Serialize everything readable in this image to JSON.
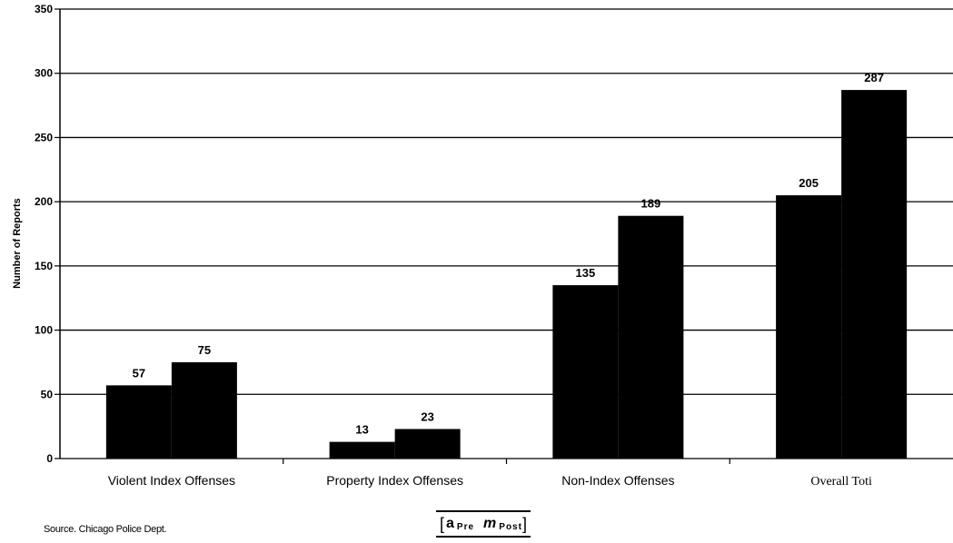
{
  "chart_data": {
    "type": "bar",
    "categories": [
      "Violent Index Offenses",
      "Property Index Offenses",
      "Non-Index Offenses",
      "Overall Toti"
    ],
    "series": [
      {
        "name": "Pre",
        "values": [
          57,
          13,
          135,
          205
        ]
      },
      {
        "name": "Post",
        "values": [
          75,
          23,
          189,
          287
        ]
      }
    ],
    "data_labels": [
      [
        "57",
        "75"
      ],
      [
        "13",
        "23"
      ],
      [
        "135",
        "189"
      ],
      [
        "205",
        "287"
      ]
    ],
    "y_ticks": [
      "0",
      "50",
      "100",
      "150",
      "200",
      "250",
      "300",
      "350"
    ],
    "ylabel": "Number of Reports",
    "xlabel": "",
    "title": "",
    "ylim": [
      0,
      350
    ],
    "grid": true,
    "legend_position": "bottom-center",
    "bar_color": "#000000"
  },
  "legend": {
    "open_bracket": "[",
    "pre_glyph": "a",
    "pre_label": "Pre",
    "post_glyph": "m",
    "post_label": "Post",
    "close_bracket": "]"
  },
  "source": "Source. Chicago Police Dept."
}
